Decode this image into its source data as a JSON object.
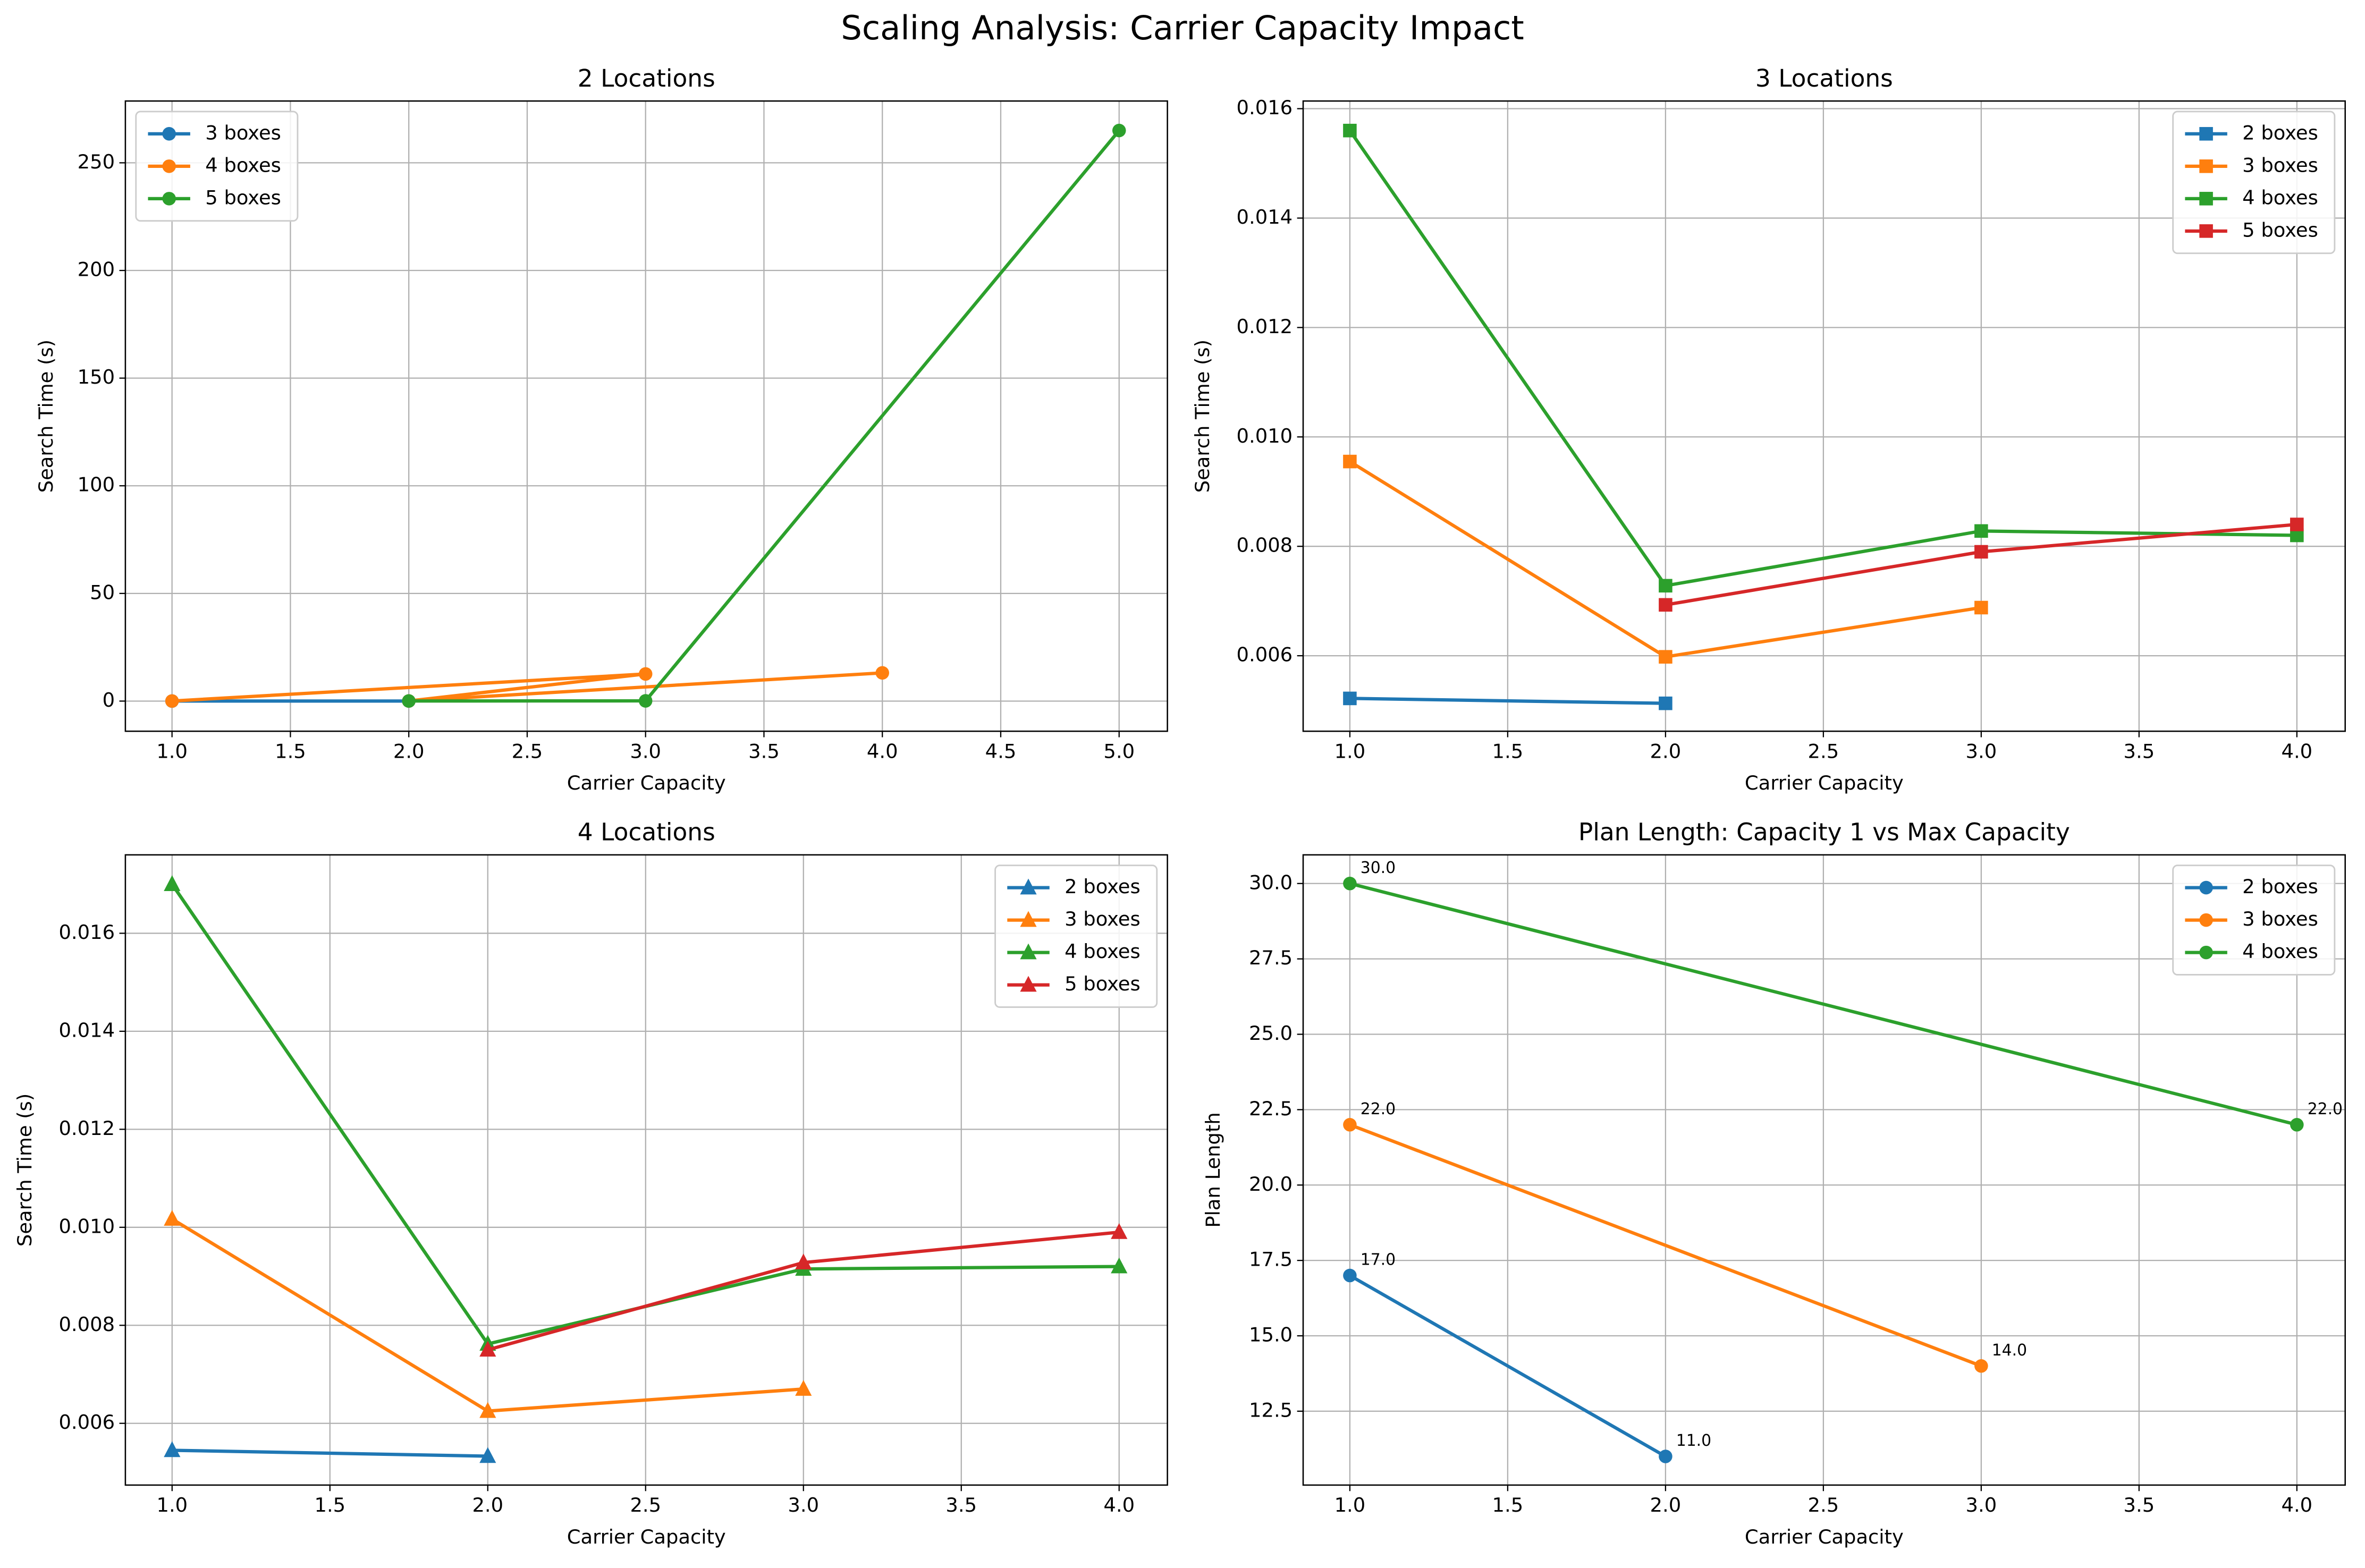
{
  "title": "Scaling Analysis: Carrier Capacity Impact",
  "chart_data": [
    {
      "type": "line",
      "title": "2 Locations",
      "xlabel": "Carrier Capacity",
      "ylabel": "Search Time (s)",
      "marker": "circle",
      "grid": true,
      "legend": "upper left",
      "xlim": [
        0.803,
        5.204
      ],
      "ylim": [
        -14,
        278.7
      ],
      "xticks": [
        {
          "value": 1,
          "label": "1.0"
        },
        {
          "value": 1.5,
          "label": "1.5"
        },
        {
          "value": 2,
          "label": "2.0"
        },
        {
          "value": 2.5,
          "label": "2.5"
        },
        {
          "value": 3,
          "label": "3.0"
        },
        {
          "value": 3.5,
          "label": "3.5"
        },
        {
          "value": 4,
          "label": "4.0"
        },
        {
          "value": 4.5,
          "label": "4.5"
        },
        {
          "value": 5,
          "label": "5.0"
        }
      ],
      "yticks": [
        0,
        50,
        100,
        150,
        200,
        250
      ],
      "series": [
        {
          "name": "3 boxes",
          "color": "#1f77b4",
          "x": [
            1,
            2
          ],
          "values": [
            0.01,
            0.02
          ]
        },
        {
          "name": "4 boxes",
          "color": "#ff7f0e",
          "x": [
            1,
            3,
            2,
            4
          ],
          "values": [
            0.03,
            12.6,
            0.05,
            13.1
          ]
        },
        {
          "name": "5 boxes",
          "color": "#2ca02c",
          "x": [
            2,
            3,
            5
          ],
          "values": [
            0.05,
            0.1,
            265
          ]
        }
      ]
    },
    {
      "type": "line",
      "title": "3 Locations",
      "xlabel": "Carrier Capacity",
      "ylabel": "Search Time (s)",
      "marker": "square",
      "grid": true,
      "legend": "upper right",
      "xlim": [
        0.852,
        4.153
      ],
      "ylim": [
        0.00462,
        0.01614
      ],
      "xticks": [
        {
          "value": 1,
          "label": "1.0"
        },
        {
          "value": 1.5,
          "label": "1.5"
        },
        {
          "value": 2,
          "label": "2.0"
        },
        {
          "value": 2.5,
          "label": "2.5"
        },
        {
          "value": 3,
          "label": "3.0"
        },
        {
          "value": 3.5,
          "label": "3.5"
        },
        {
          "value": 4,
          "label": "4.0"
        }
      ],
      "yticks": [
        {
          "value": 0.006,
          "label": "0.006"
        },
        {
          "value": 0.008,
          "label": "0.008"
        },
        {
          "value": 0.01,
          "label": "0.010"
        },
        {
          "value": 0.012,
          "label": "0.012"
        },
        {
          "value": 0.014,
          "label": "0.014"
        },
        {
          "value": 0.016,
          "label": "0.016"
        }
      ],
      "series": [
        {
          "name": "2 boxes",
          "color": "#1f77b4",
          "x": [
            1,
            2
          ],
          "values": [
            0.00522,
            0.00513
          ]
        },
        {
          "name": "3 boxes",
          "color": "#ff7f0e",
          "x": [
            1,
            2,
            3
          ],
          "values": [
            0.00955,
            0.00598,
            0.00688
          ]
        },
        {
          "name": "4 boxes",
          "color": "#2ca02c",
          "x": [
            1,
            2,
            3,
            4
          ],
          "values": [
            0.0156,
            0.00728,
            0.00828,
            0.0082
          ]
        },
        {
          "name": "5 boxes",
          "color": "#d62728",
          "x": [
            2,
            3,
            4
          ],
          "values": [
            0.00693,
            0.0079,
            0.0084
          ]
        }
      ]
    },
    {
      "type": "line",
      "title": "4 Locations",
      "xlabel": "Carrier Capacity",
      "ylabel": "Search Time (s)",
      "marker": "triangle",
      "grid": true,
      "legend": "upper right",
      "xlim": [
        0.852,
        4.153
      ],
      "ylim": [
        0.00474,
        0.0176
      ],
      "xticks": [
        {
          "value": 1,
          "label": "1.0"
        },
        {
          "value": 1.5,
          "label": "1.5"
        },
        {
          "value": 2,
          "label": "2.0"
        },
        {
          "value": 2.5,
          "label": "2.5"
        },
        {
          "value": 3,
          "label": "3.0"
        },
        {
          "value": 3.5,
          "label": "3.5"
        },
        {
          "value": 4,
          "label": "4.0"
        }
      ],
      "yticks": [
        {
          "value": 0.006,
          "label": "0.006"
        },
        {
          "value": 0.008,
          "label": "0.008"
        },
        {
          "value": 0.01,
          "label": "0.010"
        },
        {
          "value": 0.012,
          "label": "0.012"
        },
        {
          "value": 0.014,
          "label": "0.014"
        },
        {
          "value": 0.016,
          "label": "0.016"
        }
      ],
      "series": [
        {
          "name": "2 boxes",
          "color": "#1f77b4",
          "x": [
            1,
            2
          ],
          "values": [
            0.00545,
            0.00533
          ]
        },
        {
          "name": "3 boxes",
          "color": "#ff7f0e",
          "x": [
            1,
            2,
            3
          ],
          "values": [
            0.01017,
            0.00625,
            0.0067
          ]
        },
        {
          "name": "4 boxes",
          "color": "#2ca02c",
          "x": [
            1,
            2,
            3,
            4
          ],
          "values": [
            0.017,
            0.00762,
            0.00915,
            0.0092
          ]
        },
        {
          "name": "5 boxes",
          "color": "#d62728",
          "x": [
            2,
            3,
            4
          ],
          "values": [
            0.0075,
            0.00928,
            0.0099
          ]
        }
      ]
    },
    {
      "type": "line",
      "title": "Plan Length: Capacity 1 vs Max Capacity",
      "xlabel": "Carrier Capacity",
      "ylabel": "Plan Length",
      "marker": "circle",
      "grid": true,
      "legend": "upper right",
      "xlim": [
        0.852,
        4.153
      ],
      "ylim": [
        10.05,
        30.95
      ],
      "xticks": [
        {
          "value": 1,
          "label": "1.0"
        },
        {
          "value": 1.5,
          "label": "1.5"
        },
        {
          "value": 2,
          "label": "2.0"
        },
        {
          "value": 2.5,
          "label": "2.5"
        },
        {
          "value": 3,
          "label": "3.0"
        },
        {
          "value": 3.5,
          "label": "3.5"
        },
        {
          "value": 4,
          "label": "4.0"
        }
      ],
      "yticks": [
        12.5,
        {
          "value": 15,
          "label": "15.0"
        },
        17.5,
        {
          "value": 20,
          "label": "20.0"
        },
        22.5,
        {
          "value": 25,
          "label": "25.0"
        },
        27.5,
        {
          "value": 30,
          "label": "30.0"
        }
      ],
      "series": [
        {
          "name": "2 boxes",
          "color": "#1f77b4",
          "x": [
            1,
            2
          ],
          "values": [
            17,
            11
          ],
          "value_labels": [
            "17.0",
            "11.0"
          ]
        },
        {
          "name": "3 boxes",
          "color": "#ff7f0e",
          "x": [
            1,
            3
          ],
          "values": [
            22,
            14
          ],
          "value_labels": [
            "22.0",
            "14.0"
          ]
        },
        {
          "name": "4 boxes",
          "color": "#2ca02c",
          "x": [
            1,
            4
          ],
          "values": [
            30,
            22
          ],
          "value_labels": [
            "30.0",
            "22.0"
          ]
        }
      ]
    }
  ]
}
